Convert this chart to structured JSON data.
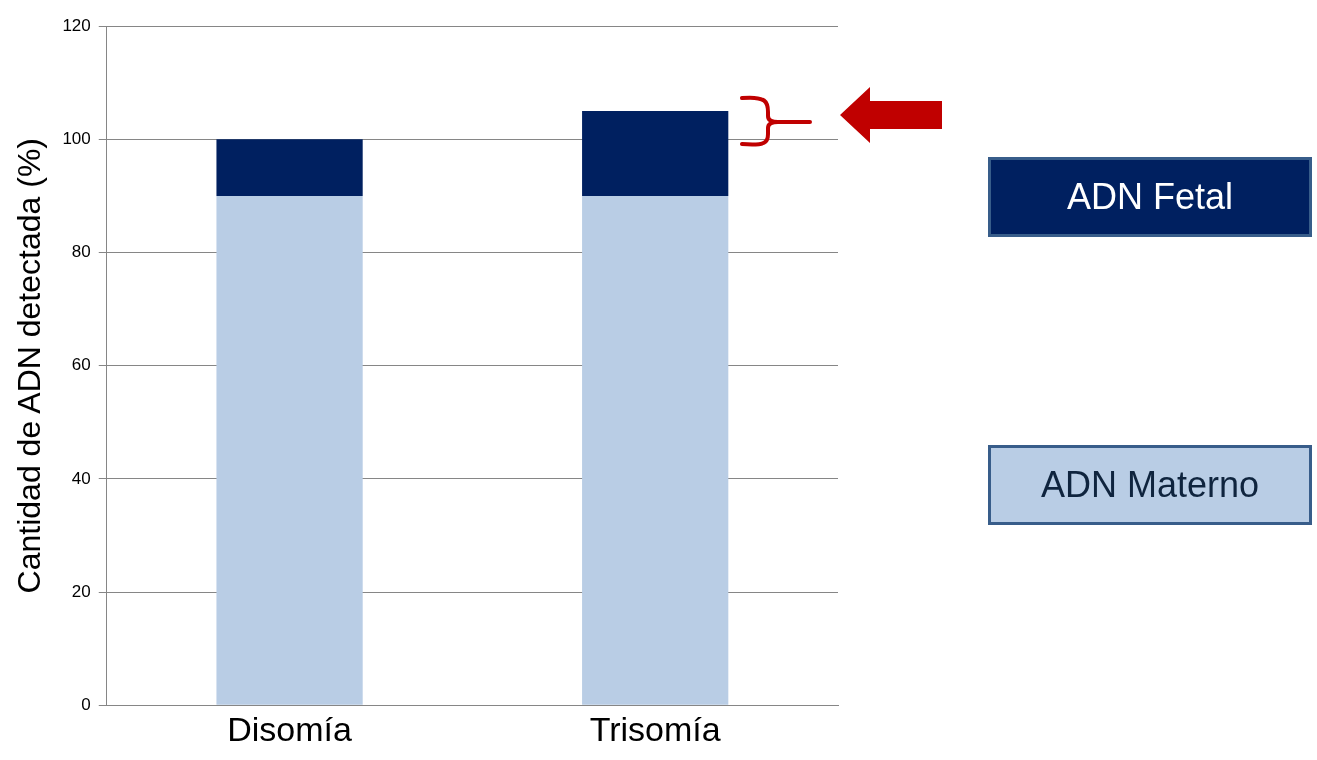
{
  "chart_data": {
    "type": "bar",
    "ylabel": "Cantidad de ADN detectada (%)",
    "categories": [
      "Disomía",
      "Trisomía"
    ],
    "stacked": true,
    "series": [
      {
        "name": "ADN Materno",
        "color": "#b9cde5",
        "values": [
          90,
          90
        ]
      },
      {
        "name": "ADN Fetal",
        "color": "#002060",
        "values": [
          10,
          15
        ]
      }
    ],
    "ylim": [
      0,
      120
    ],
    "yticks": [
      0,
      20,
      40,
      60,
      80,
      100,
      120
    ],
    "grid": "y",
    "legend": "right"
  }
}
